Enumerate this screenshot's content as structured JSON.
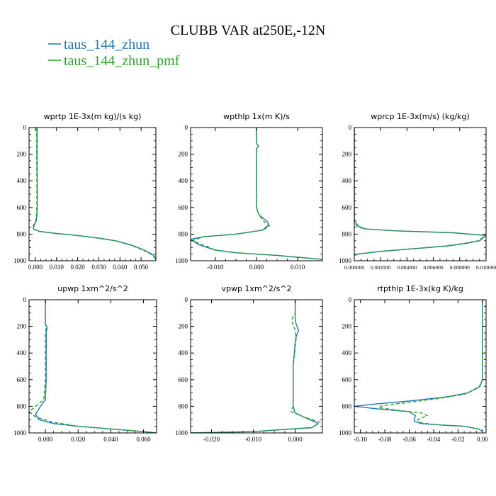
{
  "figure": {
    "title": "CLUBB VAR at250E,-12N",
    "legend": [
      {
        "name": "taus_144_zhun",
        "color": "#1f77b4"
      },
      {
        "name": "taus_144_zhun_pmf",
        "color": "#2ca02c"
      }
    ]
  },
  "chart_data": [
    {
      "type": "line",
      "title": "wprtp  1E-3x(m kg)/(s kg)",
      "xlim": [
        -0.003,
        0.057
      ],
      "ylim": [
        1000,
        0
      ],
      "xticks": [
        0.0,
        0.01,
        0.02,
        0.03,
        0.04,
        0.05
      ],
      "xticklabels": [
        "0.000",
        "0.010",
        "0.020",
        "0.030",
        "0.040",
        "0.050"
      ],
      "yticks": [
        0,
        200,
        400,
        600,
        800,
        1000
      ],
      "yticklabels": [
        "0",
        "200",
        "400",
        "600",
        "800",
        "1000"
      ],
      "series": [
        {
          "name": "taus_144_zhun",
          "color": "#1f77b4",
          "dash": false,
          "x": [
            0.0008,
            0.0008,
            0.0009,
            0.0009,
            0.0007,
            0.0004,
            -0.0005,
            -0.001,
            0.002,
            0.01,
            0.02,
            0.03,
            0.038,
            0.045,
            0.05,
            0.054,
            0.056,
            0.057
          ],
          "y": [
            0,
            200,
            400,
            600,
            660,
            700,
            730,
            760,
            780,
            795,
            810,
            830,
            850,
            880,
            910,
            940,
            960,
            990
          ]
        },
        {
          "name": "taus_144_zhun_pmf",
          "color": "#2ca02c",
          "dash": true,
          "x": [
            0.0006,
            0.0006,
            0.0007,
            0.0007,
            0.0005,
            0.0002,
            -0.0008,
            -0.0012,
            0.0015,
            0.0095,
            0.0195,
            0.0295,
            0.0375,
            0.0445,
            0.0495,
            0.0535,
            0.0555,
            0.057
          ],
          "y": [
            0,
            200,
            400,
            600,
            660,
            700,
            730,
            760,
            780,
            795,
            810,
            830,
            850,
            880,
            910,
            940,
            960,
            990
          ]
        }
      ]
    },
    {
      "type": "line",
      "title": "wpthlp  1x(m K)/s",
      "xlim": [
        -0.016,
        0.016
      ],
      "ylim": [
        1000,
        0
      ],
      "xticks": [
        -0.01,
        0.0,
        0.01
      ],
      "xticklabels": [
        "-0.010",
        "0.000",
        "0.010"
      ],
      "yticks": [
        0,
        200,
        400,
        600,
        800,
        1000
      ],
      "yticklabels": [
        "0",
        "200",
        "400",
        "600",
        "800",
        "1000"
      ],
      "series": [
        {
          "name": "taus_144_zhun",
          "color": "#1f77b4",
          "dash": false,
          "x": [
            0.0,
            0.0,
            0.0005,
            0.0,
            0.0,
            0.0,
            0.0005,
            0.0015,
            0.0025,
            0.003,
            0.0015,
            -0.005,
            -0.013,
            -0.016,
            -0.014,
            -0.01,
            -0.005,
            0.005,
            0.016
          ],
          "y": [
            0,
            120,
            140,
            160,
            400,
            600,
            650,
            680,
            700,
            730,
            770,
            800,
            820,
            840,
            880,
            920,
            940,
            960,
            990
          ]
        },
        {
          "name": "taus_144_zhun_pmf",
          "color": "#2ca02c",
          "dash": true,
          "x": [
            0.0,
            0.0,
            0.0005,
            0.0,
            0.0,
            0.0,
            0.0005,
            0.0012,
            0.002,
            0.0032,
            0.0015,
            -0.005,
            -0.013,
            -0.0155,
            -0.013,
            -0.01,
            -0.005,
            0.005,
            0.016
          ],
          "y": [
            0,
            120,
            140,
            160,
            400,
            600,
            650,
            680,
            710,
            740,
            770,
            800,
            820,
            850,
            880,
            920,
            940,
            960,
            990
          ]
        }
      ]
    },
    {
      "type": "line",
      "title": "wprcp  1E-3x(m/s) (kg/kg)",
      "xlim": [
        0,
        0.01
      ],
      "ylim": [
        1000,
        0
      ],
      "xticks": [
        0.0,
        0.002,
        0.004,
        0.006,
        0.008,
        0.01
      ],
      "xticklabels": [
        "0.000000",
        "0.002000",
        "0.004000",
        "0.006000",
        "0.008000",
        "0.010000"
      ],
      "yticks": [
        0,
        200,
        400,
        600,
        800,
        1000
      ],
      "yticklabels": [
        "0",
        "200",
        "400",
        "600",
        "800",
        "1000"
      ],
      "series": [
        {
          "name": "taus_144_zhun",
          "color": "#1f77b4",
          "dash": false,
          "x": [
            0.0,
            0.0,
            0.0,
            0.0003,
            0.0008,
            0.003,
            0.0075,
            0.01,
            0.0095,
            0.0085,
            0.007,
            0.0045,
            0.002,
            0.0003,
            0.0
          ],
          "y": [
            0,
            600,
            700,
            740,
            760,
            775,
            790,
            810,
            850,
            870,
            890,
            910,
            930,
            950,
            960
          ]
        },
        {
          "name": "taus_144_zhun_pmf",
          "color": "#2ca02c",
          "dash": true,
          "x": [
            0.0,
            0.0,
            0.0,
            0.0002,
            0.0007,
            0.003,
            0.0075,
            0.01,
            0.0094,
            0.0083,
            0.0068,
            0.0043,
            0.0019,
            0.0002,
            0.0
          ],
          "y": [
            0,
            600,
            700,
            740,
            760,
            775,
            790,
            810,
            850,
            870,
            890,
            910,
            930,
            950,
            960
          ]
        }
      ]
    },
    {
      "type": "line",
      "title": "upwp  1xm^2/s^2",
      "xlim": [
        -0.01,
        0.068
      ],
      "ylim": [
        1000,
        0
      ],
      "xticks": [
        0.0,
        0.02,
        0.04,
        0.06
      ],
      "xticklabels": [
        "0.000",
        "0.020",
        "0.040",
        "0.060"
      ],
      "yticks": [
        0,
        200,
        400,
        600,
        800,
        1000
      ],
      "yticklabels": [
        "0",
        "200",
        "400",
        "600",
        "800",
        "1000"
      ],
      "series": [
        {
          "name": "taus_144_zhun",
          "color": "#1f77b4",
          "dash": false,
          "x": [
            0.0,
            0.0,
            0.001,
            0.0005,
            0.0005,
            0.0,
            -0.003,
            -0.006,
            -0.004,
            0.005,
            0.02,
            0.04,
            0.06,
            0.068
          ],
          "y": [
            0,
            180,
            210,
            250,
            600,
            750,
            800,
            860,
            900,
            930,
            950,
            970,
            990,
            1000
          ]
        },
        {
          "name": "taus_144_zhun_pmf",
          "color": "#2ca02c",
          "dash": true,
          "x": [
            0.0,
            0.0,
            0.0005,
            0.0,
            0.0,
            -0.001,
            -0.006,
            -0.01,
            -0.006,
            0.005,
            0.02,
            0.04,
            0.06,
            0.068
          ],
          "y": [
            0,
            180,
            210,
            250,
            600,
            750,
            800,
            840,
            880,
            920,
            950,
            970,
            990,
            1000
          ]
        }
      ]
    },
    {
      "type": "line",
      "title": "vpwp  1xm^2/s^2",
      "xlim": [
        -0.025,
        0.0065
      ],
      "ylim": [
        1000,
        0
      ],
      "xticks": [
        -0.02,
        -0.01,
        0.0
      ],
      "xticklabels": [
        "-0.020",
        "-0.010",
        "0.000"
      ],
      "yticks": [
        0,
        200,
        400,
        600,
        800,
        1000
      ],
      "yticklabels": [
        "0",
        "200",
        "400",
        "600",
        "800",
        "1000"
      ],
      "series": [
        {
          "name": "taus_144_zhun",
          "color": "#1f77b4",
          "dash": false,
          "x": [
            0.0,
            0.0,
            0.0002,
            0.0008,
            0.0002,
            0.0,
            -0.0005,
            -0.0005,
            0.0,
            0.002,
            0.0055,
            0.004,
            -0.01,
            -0.025
          ],
          "y": [
            0,
            150,
            180,
            230,
            280,
            320,
            500,
            800,
            850,
            880,
            930,
            960,
            990,
            1000
          ]
        },
        {
          "name": "taus_144_zhun_pmf",
          "color": "#2ca02c",
          "dash": true,
          "x": [
            0.0,
            0.0,
            -0.0008,
            -0.0005,
            0.0,
            0.0002,
            -0.0005,
            -0.0005,
            -0.001,
            0.002,
            0.006,
            0.004,
            -0.01,
            -0.025
          ],
          "y": [
            0,
            100,
            150,
            190,
            230,
            300,
            500,
            800,
            840,
            880,
            920,
            960,
            990,
            1000
          ]
        }
      ]
    },
    {
      "type": "line",
      "title": "rtpthlp  1E-3x(kg K)/kg",
      "xlim": [
        -0.105,
        0.003
      ],
      "ylim": [
        1000,
        0
      ],
      "xticks": [
        -0.1,
        -0.08,
        -0.06,
        -0.04,
        -0.02,
        0.0
      ],
      "xticklabels": [
        "-0.10",
        "-0.08",
        "-0.06",
        "-0.04",
        "-0.02",
        "0.00"
      ],
      "yticks": [
        0,
        200,
        400,
        600,
        800,
        1000
      ],
      "yticklabels": [
        "0",
        "200",
        "400",
        "600",
        "800",
        "1000"
      ],
      "series": [
        {
          "name": "taus_144_zhun",
          "color": "#1f77b4",
          "dash": false,
          "x": [
            0.0,
            0.0,
            -0.002,
            -0.012,
            -0.03,
            -0.06,
            -0.09,
            -0.105,
            -0.085,
            -0.06,
            -0.055,
            -0.056,
            -0.05,
            -0.035,
            -0.015,
            -0.003,
            0.0
          ],
          "y": [
            0,
            600,
            650,
            700,
            730,
            760,
            785,
            800,
            820,
            840,
            870,
            910,
            930,
            940,
            950,
            970,
            990
          ]
        },
        {
          "name": "taus_144_zhun_pmf",
          "color": "#2ca02c",
          "dash": true,
          "x": [
            0.0,
            0.0,
            -0.003,
            -0.015,
            -0.035,
            -0.06,
            -0.082,
            -0.085,
            -0.07,
            -0.05,
            -0.045,
            -0.053,
            -0.05,
            -0.035,
            -0.015,
            -0.003,
            0.0
          ],
          "y": [
            0,
            600,
            660,
            710,
            740,
            770,
            795,
            810,
            830,
            850,
            870,
            900,
            925,
            940,
            950,
            970,
            990
          ]
        }
      ]
    }
  ]
}
